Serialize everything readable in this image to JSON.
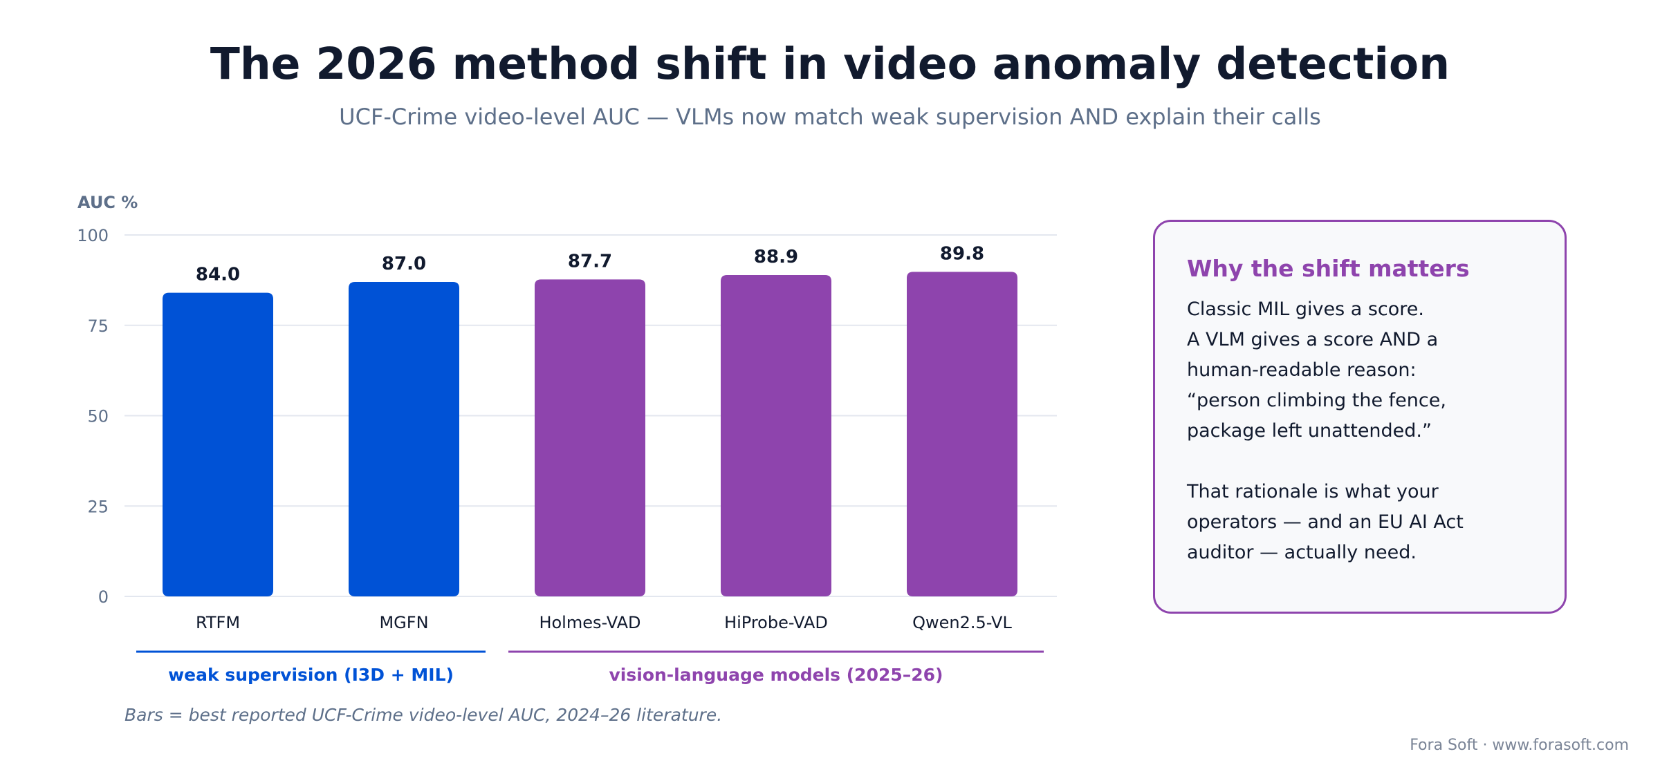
{
  "header": {
    "title": "The 2026 method shift in video anomaly detection",
    "subtitle": "UCF-Crime video-level AUC — VLMs now match weak supervision AND explain their calls"
  },
  "chart_data": {
    "type": "bar",
    "ylabel": "AUC %",
    "ylim": [
      0,
      100
    ],
    "yticks": [
      0,
      25,
      50,
      75,
      100
    ],
    "grid": true,
    "categories": [
      "RTFM",
      "MGFN",
      "Holmes-VAD",
      "HiProbe-VAD",
      "Qwen2.5-VL"
    ],
    "values": [
      84.0,
      87.0,
      87.7,
      88.9,
      89.8
    ],
    "value_labels": [
      "84.0",
      "87.0",
      "87.7",
      "88.9",
      "89.8"
    ],
    "bar_groups": [
      0,
      0,
      1,
      1,
      1
    ],
    "groups": [
      {
        "label": "weak supervision (I3D + MIL)",
        "color": "#0052d6",
        "start": 0,
        "end": 1
      },
      {
        "label": "vision-language models (2025–26)",
        "color": "#8e44ad",
        "start": 2,
        "end": 4
      }
    ]
  },
  "card": {
    "title": "Why the shift matters",
    "paragraph1": [
      "Classic MIL gives a score.",
      "A VLM gives a score AND a",
      "human-readable reason:",
      "“person climbing the fence,",
      "package left unattended.”"
    ],
    "paragraph2": [
      "That rationale is what your",
      "operators — and an EU AI Act",
      "auditor — actually need."
    ]
  },
  "footnote": "Bars = best reported UCF-Crime video-level AUC, 2024–26 literature.",
  "credit": "Fora Soft · www.forasoft.com",
  "colors": {
    "weak": "#0052d6",
    "vlm": "#8e44ad",
    "grid": "#e3e7ef",
    "axis_text": "#5d6f89",
    "dark_text": "#111a2e"
  }
}
